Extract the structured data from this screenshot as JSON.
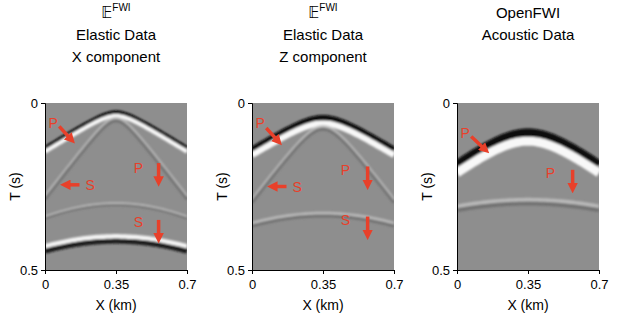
{
  "chart_data": [
    {
      "type": "seismic",
      "title": [
        {
          "base": "𝔼",
          "sup": "FWI"
        },
        "Elastic Data",
        "X component"
      ],
      "x_label": "X (km)",
      "y_label": "T (s)",
      "xlim": [
        0,
        0.7
      ],
      "xticks": [
        0,
        0.35,
        0.7
      ],
      "ylim": [
        0,
        0.5
      ],
      "yticks": [
        0,
        0.5
      ],
      "annotations": [
        "P",
        "S",
        "P",
        "S"
      ]
    },
    {
      "type": "seismic",
      "title": [
        {
          "base": "𝔼",
          "sup": "FWI"
        },
        "Elastic Data",
        "Z component"
      ],
      "x_label": "X (km)",
      "y_label": "T (s)",
      "xlim": [
        0,
        0.7
      ],
      "xticks": [
        0,
        0.35,
        0.7
      ],
      "ylim": [
        0,
        0.5
      ],
      "yticks": [
        0,
        0.5
      ],
      "annotations": [
        "P",
        "S",
        "P",
        "S"
      ]
    },
    {
      "type": "seismic",
      "title": [
        "OpenFWI",
        "Acoustic Data"
      ],
      "x_label": "X (km)",
      "y_label": "T (s)",
      "xlim": [
        0,
        0.7
      ],
      "xticks": [
        0,
        0.35,
        0.7
      ],
      "ylim": [
        0,
        0.5
      ],
      "yticks": [
        0,
        0.5
      ],
      "annotations": [
        "P",
        "P"
      ]
    }
  ]
}
